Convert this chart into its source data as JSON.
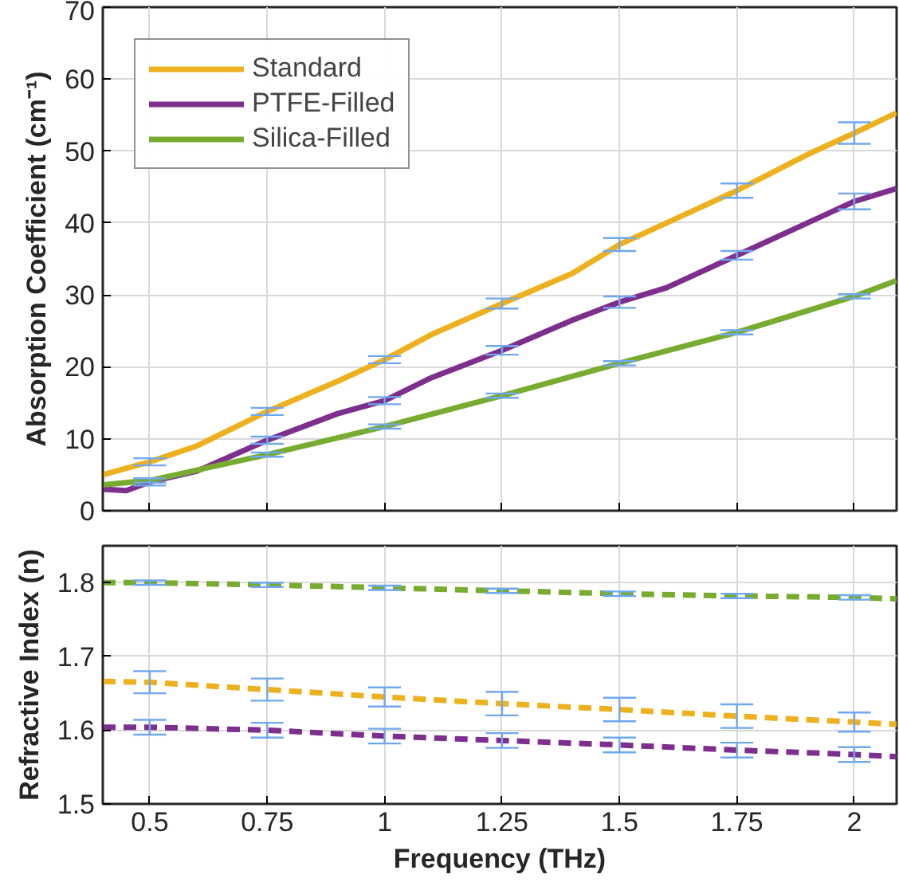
{
  "chart_data": [
    {
      "type": "line",
      "ylabel": "Absorption Coefficient (cm⁻¹)",
      "xlim": [
        0.4,
        2.09
      ],
      "ylim": [
        0,
        70
      ],
      "xticks": [
        0.5,
        0.75,
        1,
        1.25,
        1.5,
        1.75,
        2
      ],
      "yticks": [
        0,
        10,
        20,
        30,
        40,
        50,
        60,
        70
      ],
      "grid": true,
      "legend": "top left",
      "tick_labels": "y",
      "line_style": "solid",
      "series": [
        {
          "name": "Standard",
          "color": "#edb120",
          "x": [
            0.4,
            0.5,
            0.6,
            0.75,
            0.9,
            1,
            1.1,
            1.25,
            1.4,
            1.5,
            1.6,
            1.75,
            1.9,
            2,
            2.09
          ],
          "values": [
            5,
            6.8,
            9,
            13.8,
            18,
            21,
            24.5,
            28.8,
            33,
            37,
            40,
            44.5,
            49.5,
            52.5,
            55.3
          ],
          "errors": [
            null,
            0.5,
            null,
            0.5,
            null,
            0.5,
            null,
            0.7,
            null,
            0.9,
            null,
            1,
            null,
            1.5,
            null
          ]
        },
        {
          "name": "PTFE-Filled",
          "color": "#7e2f8e",
          "x": [
            0.4,
            0.45,
            0.5,
            0.6,
            0.75,
            0.9,
            1,
            1.1,
            1.25,
            1.4,
            1.5,
            1.6,
            1.75,
            1.9,
            2,
            2.09
          ],
          "values": [
            3,
            2.8,
            4,
            5.5,
            9.8,
            13.5,
            15.3,
            18.5,
            22.3,
            26.5,
            29,
            31,
            35.5,
            40,
            43,
            44.8
          ],
          "errors": [
            null,
            null,
            0.5,
            null,
            0.5,
            null,
            0.5,
            null,
            0.6,
            null,
            0.8,
            null,
            0.6,
            null,
            1.1,
            null
          ]
        },
        {
          "name": "Silica-Filled",
          "color": "#77ac30",
          "x": [
            0.4,
            0.5,
            0.75,
            1,
            1.25,
            1.5,
            1.75,
            2,
            2.09
          ],
          "values": [
            3.6,
            4.2,
            7.8,
            11.7,
            16,
            20.5,
            24.8,
            29.8,
            32
          ],
          "errors": [
            null,
            0.3,
            0.3,
            0.3,
            0.3,
            0.3,
            0.3,
            0.3,
            null
          ]
        }
      ]
    },
    {
      "type": "line",
      "xlabel": "Frequency (THz)",
      "ylabel": "Refractive Index (n)",
      "xlim": [
        0.4,
        2.09
      ],
      "ylim": [
        1.5,
        1.85
      ],
      "xticks": [
        0.5,
        0.75,
        1,
        1.25,
        1.5,
        1.75,
        2
      ],
      "yticks": [
        1.5,
        1.6,
        1.7,
        1.8
      ],
      "grid": true,
      "line_style": "dashed",
      "series": [
        {
          "color": "#edb120",
          "x": [
            0.4,
            0.5,
            0.75,
            1,
            1.25,
            1.5,
            1.75,
            2,
            2.09
          ],
          "values": [
            1.666,
            1.665,
            1.655,
            1.645,
            1.636,
            1.628,
            1.619,
            1.611,
            1.608
          ],
          "errors": [
            null,
            0.015,
            0.015,
            0.013,
            0.016,
            0.016,
            0.016,
            0.013,
            null
          ]
        },
        {
          "color": "#7e2f8e",
          "x": [
            0.4,
            0.5,
            0.75,
            1,
            1.25,
            1.5,
            1.75,
            2,
            2.09
          ],
          "values": [
            1.604,
            1.604,
            1.6,
            1.592,
            1.586,
            1.58,
            1.573,
            1.567,
            1.564
          ],
          "errors": [
            null,
            0.01,
            0.01,
            0.01,
            0.01,
            0.01,
            0.01,
            0.01,
            null
          ]
        },
        {
          "color": "#77ac30",
          "x": [
            0.4,
            0.5,
            0.75,
            1,
            1.25,
            1.5,
            1.75,
            2,
            2.09
          ],
          "values": [
            1.8,
            1.8,
            1.797,
            1.793,
            1.789,
            1.785,
            1.782,
            1.78,
            1.778
          ],
          "errors": [
            null,
            0.003,
            0.003,
            0.003,
            0.003,
            0.003,
            0.003,
            0.003,
            null
          ]
        }
      ]
    }
  ]
}
